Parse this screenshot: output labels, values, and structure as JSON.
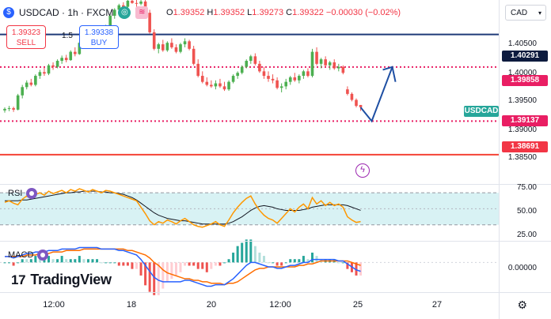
{
  "symbol": {
    "name": "USDCAD",
    "interval": "1h",
    "exchange": "FXCM",
    "full_label": "USDCAD · 1h · FXCM"
  },
  "ohlc": {
    "open_label": "O",
    "open": "1.39352",
    "high_label": "H",
    "high": "1.39352",
    "low_label": "L",
    "low": "1.39273",
    "close_label": "C",
    "close": "1.39322",
    "change": "−0.00030 (−0.02%)"
  },
  "trade": {
    "sell_price": "1.39323",
    "sell_label": "SELL",
    "spread": "1.5",
    "buy_price": "1.39338",
    "buy_label": "BUY"
  },
  "currency_button": "CAD",
  "price_axis": {
    "labels": [
      "1.40500",
      "1.40000",
      "1.39500",
      "1.39000",
      "1.38500"
    ]
  },
  "price_tags": {
    "resistance": "1.40291",
    "dotted_upper": "1.39858",
    "symbol_tag": "USDCAD",
    "dotted_lower": "1.39137",
    "support": "1.38691"
  },
  "rsi": {
    "label": "RSI",
    "axis": [
      "75.00",
      "50.00",
      "25.00"
    ]
  },
  "macd": {
    "label": "MACD",
    "axis": [
      "0.00000"
    ]
  },
  "time_axis": [
    "12:00",
    "18",
    "20",
    "12:00",
    "25",
    "27"
  ],
  "brand": {
    "name": "TradingView",
    "mark": "17"
  },
  "colors": {
    "up": "#26a69a",
    "down": "#ef5350",
    "up_candle": "#4caf50",
    "resistance_line": "#1e3a78",
    "dotted_line": "#e91e63",
    "support_line": "#f44336",
    "arrow": "#1e4fa3",
    "rsi_line": "#ff9800",
    "rsi_ma": "#131722",
    "rsi_band": "#d8f2f4",
    "macd_line": "#2962ff",
    "signal_line": "#ff6d00"
  },
  "chart_data": {
    "type": "candlestick",
    "candles_ohlc": [
      [
        1.3928,
        1.3932,
        1.3925,
        1.393
      ],
      [
        1.393,
        1.3934,
        1.3927,
        1.3931
      ],
      [
        1.3931,
        1.3933,
        1.3926,
        1.3929
      ],
      [
        1.3929,
        1.395,
        1.3928,
        1.3948
      ],
      [
        1.3948,
        1.3962,
        1.3944,
        1.3959
      ],
      [
        1.3959,
        1.3968,
        1.3956,
        1.3965
      ],
      [
        1.3965,
        1.397,
        1.396,
        1.3962
      ],
      [
        1.3962,
        1.3976,
        1.396,
        1.3974
      ],
      [
        1.3974,
        1.3982,
        1.397,
        1.3979
      ],
      [
        1.3979,
        1.3985,
        1.3974,
        1.3977
      ],
      [
        1.3977,
        1.399,
        1.3975,
        1.3988
      ],
      [
        1.3988,
        1.3992,
        1.3982,
        1.3986
      ],
      [
        1.3986,
        1.3996,
        1.3984,
        1.3994
      ],
      [
        1.3994,
        1.4001,
        1.399,
        1.3998
      ],
      [
        1.3998,
        1.4002,
        1.3992,
        1.3995
      ],
      [
        1.3995,
        1.4008,
        1.3994,
        1.4006
      ],
      [
        1.4006,
        1.4012,
        1.4,
        1.4003
      ],
      [
        1.4003,
        1.402,
        1.4002,
        1.4018
      ],
      [
        1.4018,
        1.4026,
        1.4014,
        1.4024
      ],
      [
        1.4024,
        1.403,
        1.402,
        1.4022
      ],
      [
        1.4022,
        1.4032,
        1.4018,
        1.403
      ],
      [
        1.403,
        1.4036,
        1.4026,
        1.4034
      ],
      [
        1.4034,
        1.404,
        1.403,
        1.4032
      ],
      [
        1.4032,
        1.4042,
        1.403,
        1.404
      ],
      [
        1.404,
        1.4056,
        1.4038,
        1.4054
      ],
      [
        1.4054,
        1.4064,
        1.405,
        1.4062
      ],
      [
        1.4062,
        1.407,
        1.4058,
        1.4068
      ],
      [
        1.4068,
        1.4072,
        1.4062,
        1.4066
      ],
      [
        1.4066,
        1.4076,
        1.4064,
        1.4074
      ],
      [
        1.4074,
        1.4078,
        1.407,
        1.4071
      ],
      [
        1.4071,
        1.4076,
        1.4066,
        1.407
      ],
      [
        1.407,
        1.4076,
        1.4068,
        1.4073
      ],
      [
        1.4073,
        1.4078,
        1.4056,
        1.4058
      ],
      [
        1.4058,
        1.4062,
        1.403,
        1.4032
      ],
      [
        1.4032,
        1.4036,
        1.4008,
        1.401
      ],
      [
        1.401,
        1.4018,
        1.4004,
        1.4016
      ],
      [
        1.4016,
        1.4022,
        1.4006,
        1.4008
      ],
      [
        1.4008,
        1.402,
        1.4006,
        1.4018
      ],
      [
        1.4018,
        1.4024,
        1.401,
        1.4012
      ],
      [
        1.4012,
        1.4016,
        1.4004,
        1.4006
      ],
      [
        1.4006,
        1.4018,
        1.4004,
        1.4016
      ],
      [
        1.4016,
        1.4024,
        1.4012,
        1.402
      ],
      [
        1.402,
        1.4022,
        1.4008,
        1.401
      ],
      [
        1.401,
        1.4014,
        1.3988,
        1.399
      ],
      [
        1.399,
        1.3996,
        1.3972,
        1.3974
      ],
      [
        1.3974,
        1.398,
        1.3964,
        1.3966
      ],
      [
        1.3966,
        1.3972,
        1.396,
        1.3962
      ],
      [
        1.3962,
        1.3968,
        1.3958,
        1.396
      ],
      [
        1.396,
        1.3968,
        1.3956,
        1.3964
      ],
      [
        1.3964,
        1.397,
        1.3958,
        1.396
      ],
      [
        1.396,
        1.3966,
        1.3954,
        1.3956
      ],
      [
        1.3956,
        1.3968,
        1.3954,
        1.3966
      ],
      [
        1.3966,
        1.3976,
        1.3964,
        1.3974
      ],
      [
        1.3974,
        1.398,
        1.397,
        1.3978
      ],
      [
        1.3978,
        1.3988,
        1.3976,
        1.3986
      ],
      [
        1.3986,
        1.3996,
        1.3984,
        1.3994
      ],
      [
        1.3994,
        1.4002,
        1.399,
        1.4
      ],
      [
        1.4,
        1.4004,
        1.3988,
        1.399
      ],
      [
        1.399,
        1.3994,
        1.3978,
        1.398
      ],
      [
        1.398,
        1.3986,
        1.397,
        1.3974
      ],
      [
        1.3974,
        1.398,
        1.3966,
        1.397
      ],
      [
        1.397,
        1.3976,
        1.3964,
        1.3968
      ],
      [
        1.3968,
        1.3972,
        1.3956,
        1.3958
      ],
      [
        1.3958,
        1.3964,
        1.3952,
        1.396
      ],
      [
        1.396,
        1.397,
        1.3956,
        1.3966
      ],
      [
        1.3966,
        1.3974,
        1.3962,
        1.3972
      ],
      [
        1.3972,
        1.3978,
        1.3966,
        1.3968
      ],
      [
        1.3968,
        1.3976,
        1.3964,
        1.3974
      ],
      [
        1.3974,
        1.3982,
        1.397,
        1.398
      ],
      [
        1.398,
        1.3984,
        1.3972,
        1.3974
      ],
      [
        1.3974,
        1.401,
        1.3972,
        1.4006
      ],
      [
        1.4006,
        1.4012,
        1.3988,
        1.399
      ],
      [
        1.399,
        1.3998,
        1.3984,
        1.3996
      ],
      [
        1.3996,
        1.4,
        1.3986,
        1.3988
      ],
      [
        1.3988,
        1.3994,
        1.3982,
        1.3992
      ],
      [
        1.3992,
        1.3996,
        1.3982,
        1.3984
      ],
      [
        1.3984,
        1.399,
        1.398,
        1.3986
      ],
      [
        1.3986,
        1.3988,
        1.3976,
        1.3978
      ],
      [
        1.3956,
        1.396,
        1.3948,
        1.395
      ],
      [
        1.395,
        1.3952,
        1.394,
        1.3942
      ],
      [
        1.3942,
        1.3944,
        1.3932,
        1.3934
      ],
      [
        1.39352,
        1.39352,
        1.39273,
        1.39322
      ]
    ],
    "price_axis_range": [
      1.383,
      1.4075
    ],
    "resistance": 1.40291,
    "dotted_upper": 1.39858,
    "dotted_lower": 1.39137,
    "support": 1.38691,
    "rsi_range": [
      10,
      80
    ],
    "rsi_levels": [
      70,
      30
    ],
    "rsi": [
      58,
      60,
      57,
      55,
      62,
      66,
      64,
      68,
      70,
      67,
      72,
      69,
      71,
      73,
      70,
      74,
      72,
      75,
      73,
      71,
      74,
      72,
      70,
      73,
      72,
      70,
      68,
      66,
      64,
      62,
      60,
      52,
      44,
      35,
      30,
      34,
      32,
      36,
      34,
      31,
      35,
      38,
      34,
      30,
      28,
      27,
      29,
      31,
      34,
      30,
      28,
      36,
      45,
      52,
      58,
      63,
      66,
      56,
      48,
      42,
      38,
      36,
      32,
      38,
      44,
      50,
      46,
      52,
      56,
      50,
      64,
      56,
      60,
      54,
      58,
      54,
      56,
      52,
      40,
      36,
      33,
      34
    ],
    "rsi_ma": [
      60,
      60,
      60,
      60,
      61,
      61,
      62,
      63,
      64,
      65,
      66,
      67,
      68,
      69,
      70,
      70,
      71,
      71,
      72,
      72,
      72,
      72,
      71,
      71,
      70,
      70,
      69,
      68,
      66,
      64,
      61,
      57,
      53,
      49,
      45,
      42,
      40,
      38,
      37,
      36,
      35,
      35,
      34,
      33,
      32,
      31,
      31,
      31,
      31,
      31,
      31,
      32,
      34,
      37,
      40,
      44,
      48,
      51,
      53,
      54,
      53,
      52,
      50,
      49,
      48,
      48,
      48,
      48,
      49,
      50,
      52,
      53,
      54,
      55,
      55,
      55,
      55,
      55,
      54,
      52,
      50,
      48
    ],
    "macd_range": [
      -0.002,
      0.0014
    ],
    "macd": [
      0.0004,
      0.0004,
      0.0003,
      0.0004,
      0.0005,
      0.0006,
      0.0006,
      0.0007,
      0.0007,
      0.0007,
      0.0008,
      0.0008,
      0.0008,
      0.0009,
      0.0009,
      0.0009,
      0.0009,
      0.001,
      0.001,
      0.001,
      0.001,
      0.001,
      0.0009,
      0.0009,
      0.0009,
      0.0009,
      0.0008,
      0.0008,
      0.0007,
      0.0006,
      0.0005,
      0.0002,
      -0.0002,
      -0.0006,
      -0.001,
      -0.0012,
      -0.0013,
      -0.0013,
      -0.0013,
      -0.0013,
      -0.0013,
      -0.0012,
      -0.0012,
      -0.0013,
      -0.0014,
      -0.0015,
      -0.0016,
      -0.0016,
      -0.0015,
      -0.0015,
      -0.0015,
      -0.0013,
      -0.0011,
      -0.0008,
      -0.0005,
      -0.0002,
      0.0,
      0.0,
      -0.0001,
      -0.0002,
      -0.0003,
      -0.0003,
      -0.0004,
      -0.0004,
      -0.0003,
      -0.0002,
      -0.0002,
      -0.0001,
      0.0,
      0.0,
      0.0002,
      0.0002,
      0.0002,
      0.0002,
      0.0002,
      0.0002,
      0.0001,
      0.0001,
      -0.0001,
      -0.0003,
      -0.0005,
      -0.0006
    ],
    "signal": [
      0.0004,
      0.0004,
      0.0004,
      0.0004,
      0.0004,
      0.0005,
      0.0005,
      0.0005,
      0.0006,
      0.0006,
      0.0006,
      0.0007,
      0.0007,
      0.0007,
      0.0008,
      0.0008,
      0.0008,
      0.0008,
      0.0009,
      0.0009,
      0.0009,
      0.0009,
      0.0009,
      0.0009,
      0.0009,
      0.0009,
      0.0009,
      0.0009,
      0.0008,
      0.0008,
      0.0007,
      0.0006,
      0.0005,
      0.0003,
      0.0,
      -0.0002,
      -0.0005,
      -0.0007,
      -0.0008,
      -0.0009,
      -0.001,
      -0.0011,
      -0.0011,
      -0.0012,
      -0.0012,
      -0.0013,
      -0.0013,
      -0.0014,
      -0.0014,
      -0.0014,
      -0.0015,
      -0.0014,
      -0.0014,
      -0.0013,
      -0.0011,
      -0.0009,
      -0.0007,
      -0.0005,
      -0.0004,
      -0.0004,
      -0.0003,
      -0.0003,
      -0.0003,
      -0.0003,
      -0.0003,
      -0.0003,
      -0.0003,
      -0.0002,
      -0.0002,
      -0.0001,
      -0.0001,
      0.0,
      0.0001,
      0.0001,
      0.0001,
      0.0001,
      0.0001,
      0.0001,
      0.0001,
      0.0,
      -0.0001,
      -0.0002
    ]
  }
}
